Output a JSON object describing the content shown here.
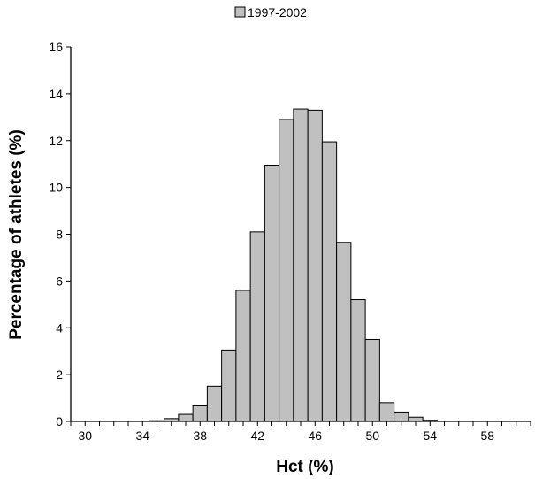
{
  "chart_data": {
    "type": "bar",
    "xlabel": "Hct (%)",
    "ylabel": "Percentage of athletes (%)",
    "legend": {
      "label": "1997-2002",
      "placement": "top-center"
    },
    "bar_color": "#c0c0c0",
    "bar_stroke": "#000000",
    "xlim": [
      29,
      61
    ],
    "xticks": [
      30,
      34,
      38,
      42,
      46,
      50,
      54,
      58
    ],
    "ylim": [
      0,
      16
    ],
    "yticks": [
      0,
      2,
      4,
      6,
      8,
      10,
      12,
      14,
      16
    ],
    "grid": false,
    "bin_width": 1,
    "bins": [
      {
        "x": 35,
        "value": 0.03
      },
      {
        "x": 36,
        "value": 0.12
      },
      {
        "x": 37,
        "value": 0.3
      },
      {
        "x": 38,
        "value": 0.7
      },
      {
        "x": 39,
        "value": 1.5
      },
      {
        "x": 40,
        "value": 3.05
      },
      {
        "x": 41,
        "value": 5.6
      },
      {
        "x": 42,
        "value": 8.1
      },
      {
        "x": 43,
        "value": 10.95
      },
      {
        "x": 44,
        "value": 12.9
      },
      {
        "x": 45,
        "value": 13.35
      },
      {
        "x": 46,
        "value": 13.3
      },
      {
        "x": 47,
        "value": 11.95
      },
      {
        "x": 48,
        "value": 7.65
      },
      {
        "x": 49,
        "value": 5.2
      },
      {
        "x": 50,
        "value": 3.5
      },
      {
        "x": 51,
        "value": 0.8
      },
      {
        "x": 52,
        "value": 0.4
      },
      {
        "x": 53,
        "value": 0.18
      },
      {
        "x": 54,
        "value": 0.05
      }
    ]
  }
}
